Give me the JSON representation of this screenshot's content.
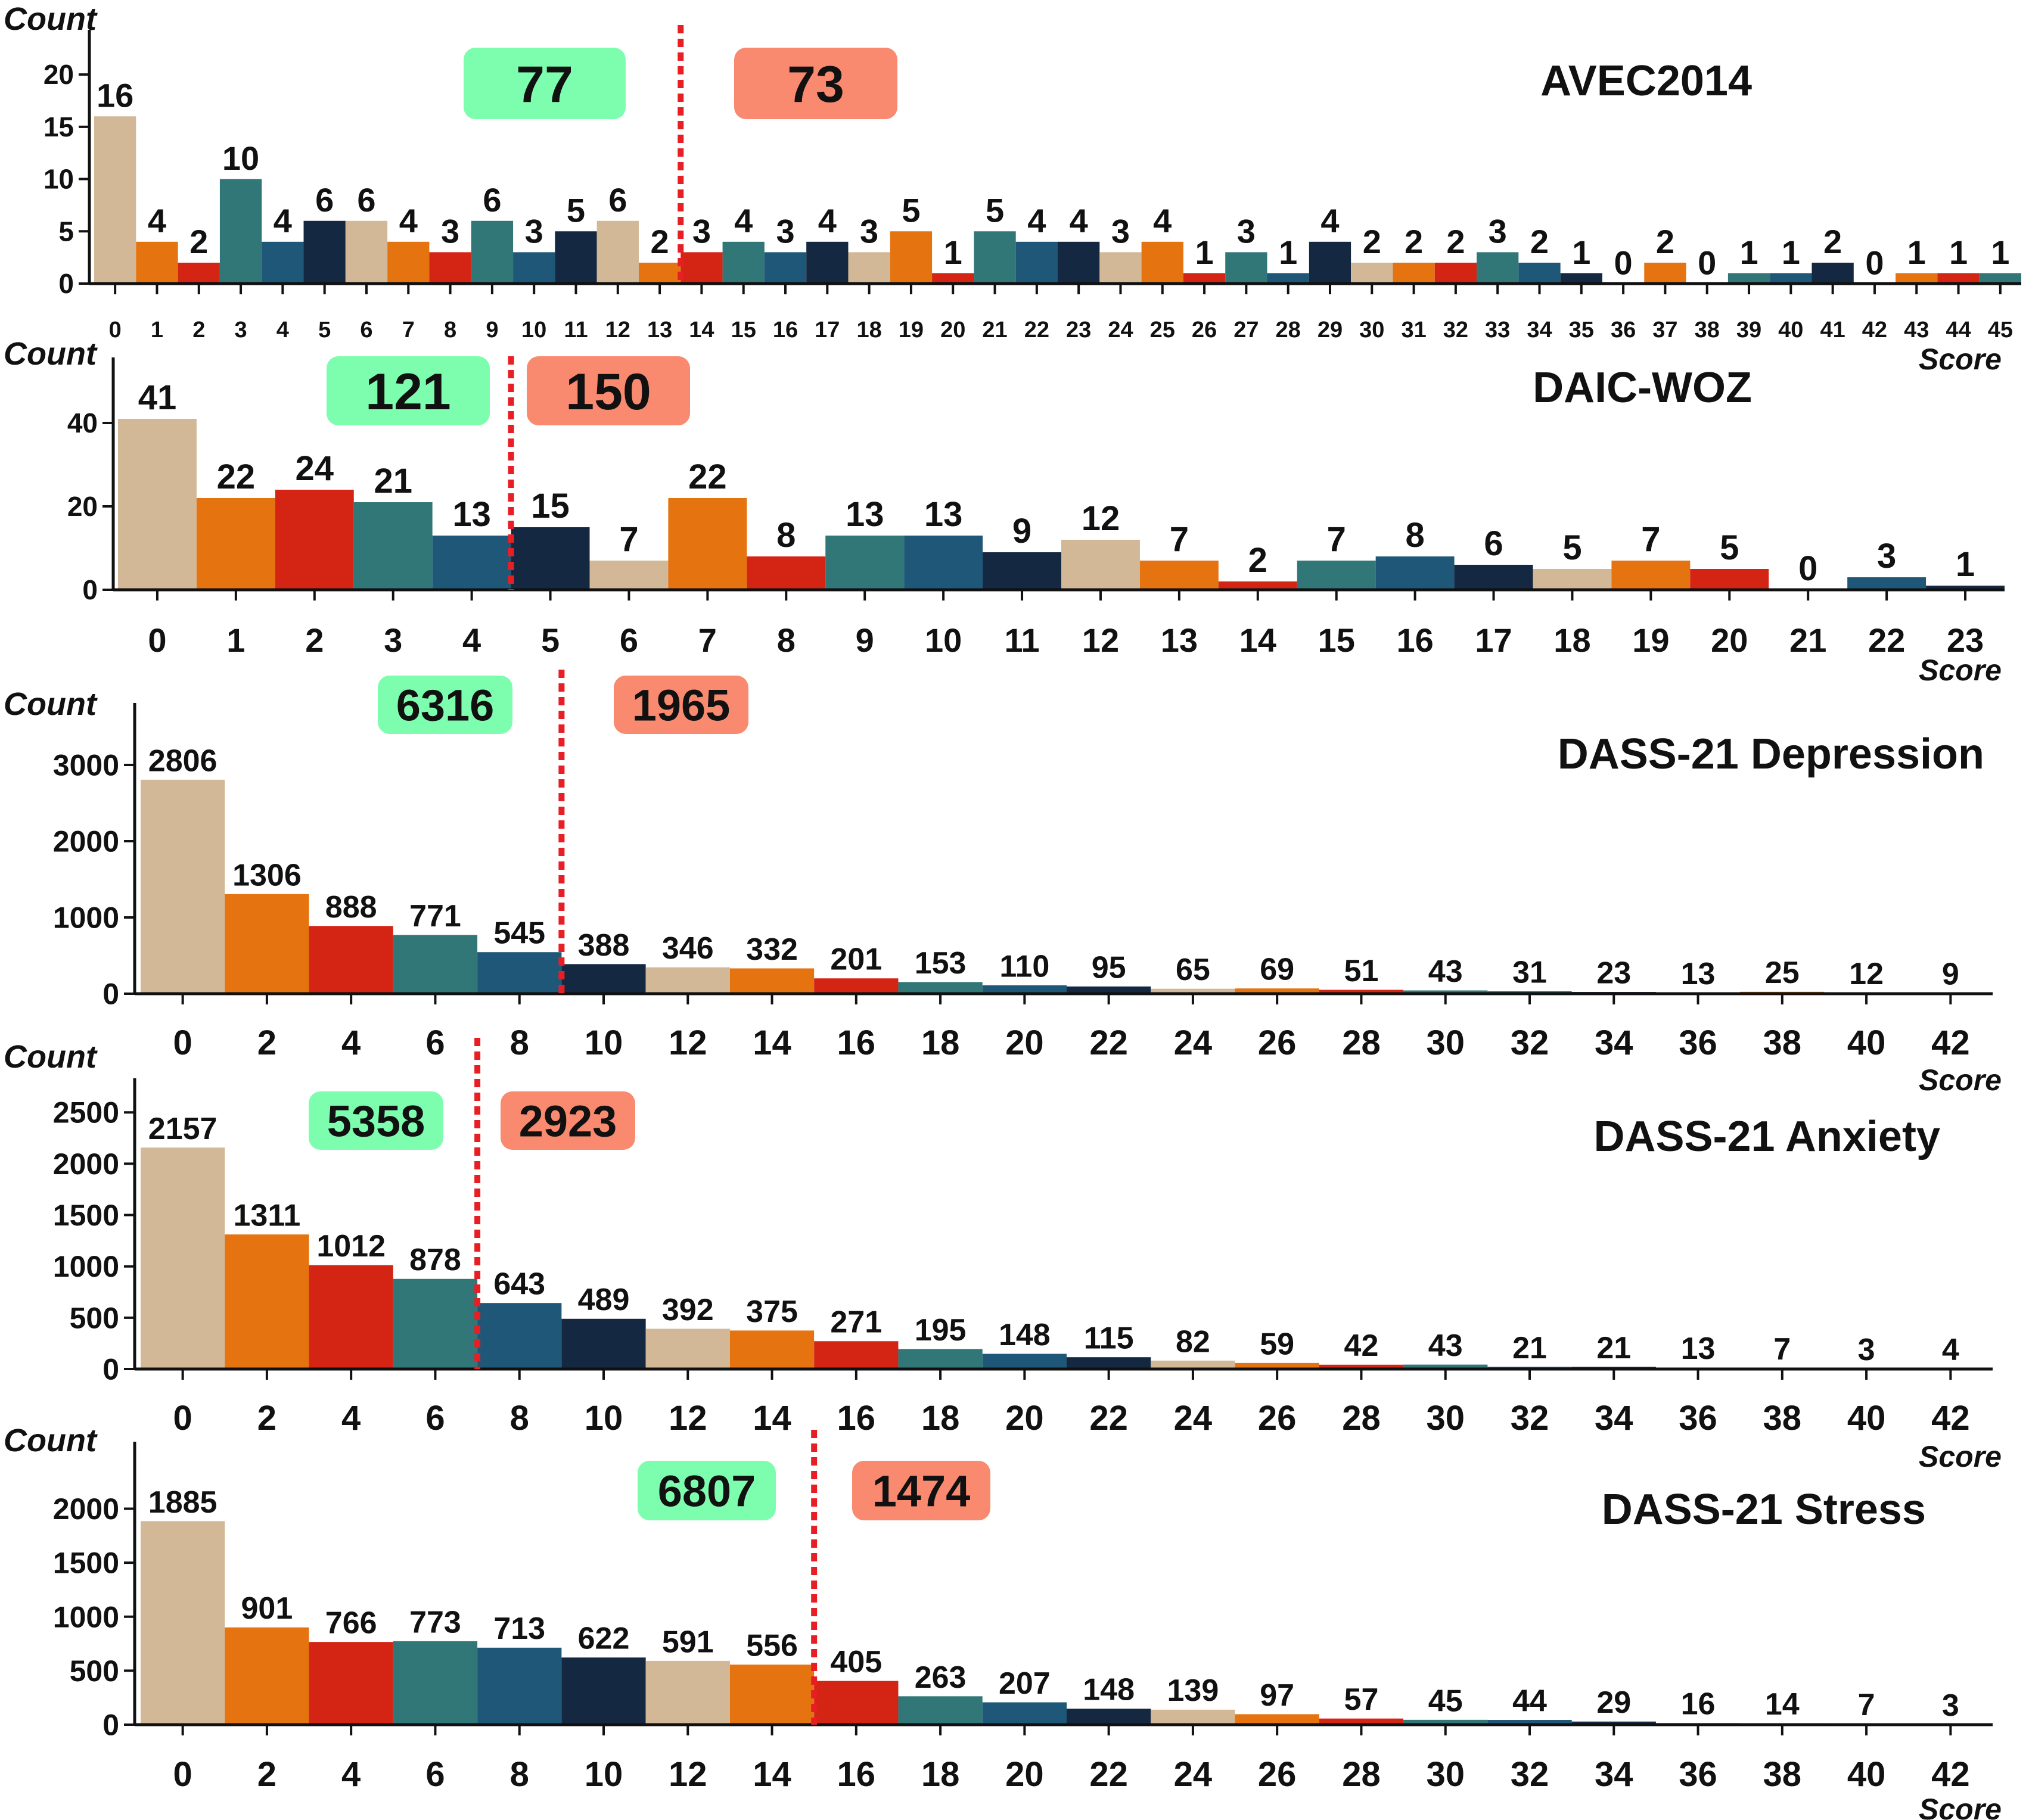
{
  "colors": {
    "palette": [
      "#D2B896",
      "#E5730F",
      "#D42413",
      "#327777",
      "#1E5777",
      "#152841"
    ],
    "threshold_line": "#E81E25",
    "below_box": "#7DFEAE",
    "above_box": "#F98A6F",
    "axis": "#111111"
  },
  "chart_data": [
    {
      "type": "bar",
      "title": "AVEC2014",
      "ylabel": "Count",
      "xlabel": "Score",
      "ylim": [
        0,
        22
      ],
      "yticks": [
        0,
        5,
        10,
        15,
        20
      ],
      "x": [
        0,
        1,
        2,
        3,
        4,
        5,
        6,
        7,
        8,
        9,
        10,
        11,
        12,
        13,
        14,
        15,
        16,
        17,
        18,
        19,
        20,
        21,
        22,
        23,
        24,
        25,
        26,
        27,
        28,
        29,
        30,
        31,
        32,
        33,
        34,
        35,
        36,
        37,
        38,
        39,
        40,
        41,
        42,
        43,
        44,
        45
      ],
      "xticks": [
        0,
        1,
        2,
        3,
        4,
        5,
        6,
        7,
        8,
        9,
        10,
        11,
        12,
        13,
        14,
        15,
        16,
        17,
        18,
        19,
        20,
        21,
        22,
        23,
        24,
        25,
        26,
        27,
        28,
        29,
        30,
        31,
        32,
        33,
        34,
        35,
        36,
        37,
        38,
        39,
        40,
        41,
        42,
        43,
        44,
        45
      ],
      "values": [
        16,
        4,
        2,
        10,
        4,
        6,
        6,
        4,
        3,
        6,
        3,
        5,
        6,
        2,
        3,
        4,
        3,
        4,
        3,
        5,
        1,
        5,
        4,
        4,
        3,
        4,
        1,
        3,
        1,
        4,
        2,
        2,
        2,
        3,
        2,
        1,
        0,
        2,
        0,
        1,
        1,
        2,
        0,
        1,
        1,
        1
      ],
      "threshold": 13.5,
      "below_total": "77",
      "above_total": "73",
      "grid": false
    },
    {
      "type": "bar",
      "title": "DAIC-WOZ",
      "ylabel": "Count",
      "xlabel": "Score",
      "ylim": [
        0,
        50
      ],
      "yticks": [
        0,
        20,
        40
      ],
      "x": [
        0,
        1,
        2,
        3,
        4,
        5,
        6,
        7,
        8,
        9,
        10,
        11,
        12,
        13,
        14,
        15,
        16,
        17,
        18,
        19,
        20,
        21,
        22,
        23
      ],
      "xticks": [
        0,
        1,
        2,
        3,
        4,
        5,
        6,
        7,
        8,
        9,
        10,
        11,
        12,
        13,
        14,
        15,
        16,
        17,
        18,
        19,
        20,
        21,
        22,
        23
      ],
      "values": [
        41,
        22,
        24,
        21,
        13,
        15,
        7,
        22,
        8,
        13,
        13,
        9,
        12,
        7,
        2,
        7,
        8,
        6,
        5,
        7,
        5,
        0,
        3,
        1
      ],
      "threshold": 4.5,
      "below_total": "121",
      "above_total": "150",
      "grid": false
    },
    {
      "type": "bar",
      "title": "DASS-21  Depression",
      "ylabel": "Count",
      "xlabel": "Score",
      "ylim": [
        0,
        3500
      ],
      "yticks": [
        0,
        1000,
        2000,
        3000
      ],
      "x": [
        0,
        2,
        4,
        6,
        8,
        10,
        12,
        14,
        16,
        18,
        20,
        22,
        24,
        26,
        28,
        30,
        32,
        34,
        36,
        38,
        40,
        42
      ],
      "xticks": [
        0,
        2,
        4,
        6,
        8,
        10,
        12,
        14,
        16,
        18,
        20,
        22,
        24,
        26,
        28,
        30,
        32,
        34,
        36,
        38,
        40,
        42
      ],
      "values": [
        2806,
        1306,
        888,
        771,
        545,
        388,
        346,
        332,
        201,
        153,
        110,
        95,
        65,
        69,
        51,
        43,
        31,
        23,
        13,
        25,
        12,
        9
      ],
      "threshold": 9,
      "below_total": "6316",
      "above_total": "1965",
      "grid": false
    },
    {
      "type": "bar",
      "title": "DASS-21  Anxiety",
      "ylabel": "Count",
      "xlabel": "Score",
      "ylim": [
        0,
        2600
      ],
      "yticks": [
        0,
        500,
        1000,
        1500,
        2000,
        2500
      ],
      "x": [
        0,
        2,
        4,
        6,
        8,
        10,
        12,
        14,
        16,
        18,
        20,
        22,
        24,
        26,
        28,
        30,
        32,
        34,
        36,
        38,
        40,
        42
      ],
      "xticks": [
        0,
        2,
        4,
        6,
        8,
        10,
        12,
        14,
        16,
        18,
        20,
        22,
        24,
        26,
        28,
        30,
        32,
        34,
        36,
        38,
        40,
        42
      ],
      "values": [
        2157,
        1311,
        1012,
        878,
        643,
        489,
        392,
        375,
        271,
        195,
        148,
        115,
        82,
        59,
        42,
        43,
        21,
        21,
        13,
        7,
        3,
        4
      ],
      "threshold": 7,
      "below_total": "5358",
      "above_total": "2923",
      "grid": false
    },
    {
      "type": "bar",
      "title": "DASS-21  Stress",
      "ylabel": "Count",
      "xlabel": "Score",
      "ylim": [
        0,
        2400
      ],
      "yticks": [
        0,
        500,
        1000,
        1500,
        2000
      ],
      "x": [
        0,
        2,
        4,
        6,
        8,
        10,
        12,
        14,
        16,
        18,
        20,
        22,
        24,
        26,
        28,
        30,
        32,
        34,
        36,
        38,
        40,
        42
      ],
      "xticks": [
        0,
        2,
        4,
        6,
        8,
        10,
        12,
        14,
        16,
        18,
        20,
        22,
        24,
        26,
        28,
        30,
        32,
        34,
        36,
        38,
        40,
        42
      ],
      "values": [
        1885,
        901,
        766,
        773,
        713,
        622,
        591,
        556,
        405,
        263,
        207,
        148,
        139,
        97,
        57,
        45,
        44,
        29,
        16,
        14,
        7,
        3
      ],
      "threshold": 15,
      "below_total": "6807",
      "above_total": "1474",
      "grid": false
    }
  ]
}
